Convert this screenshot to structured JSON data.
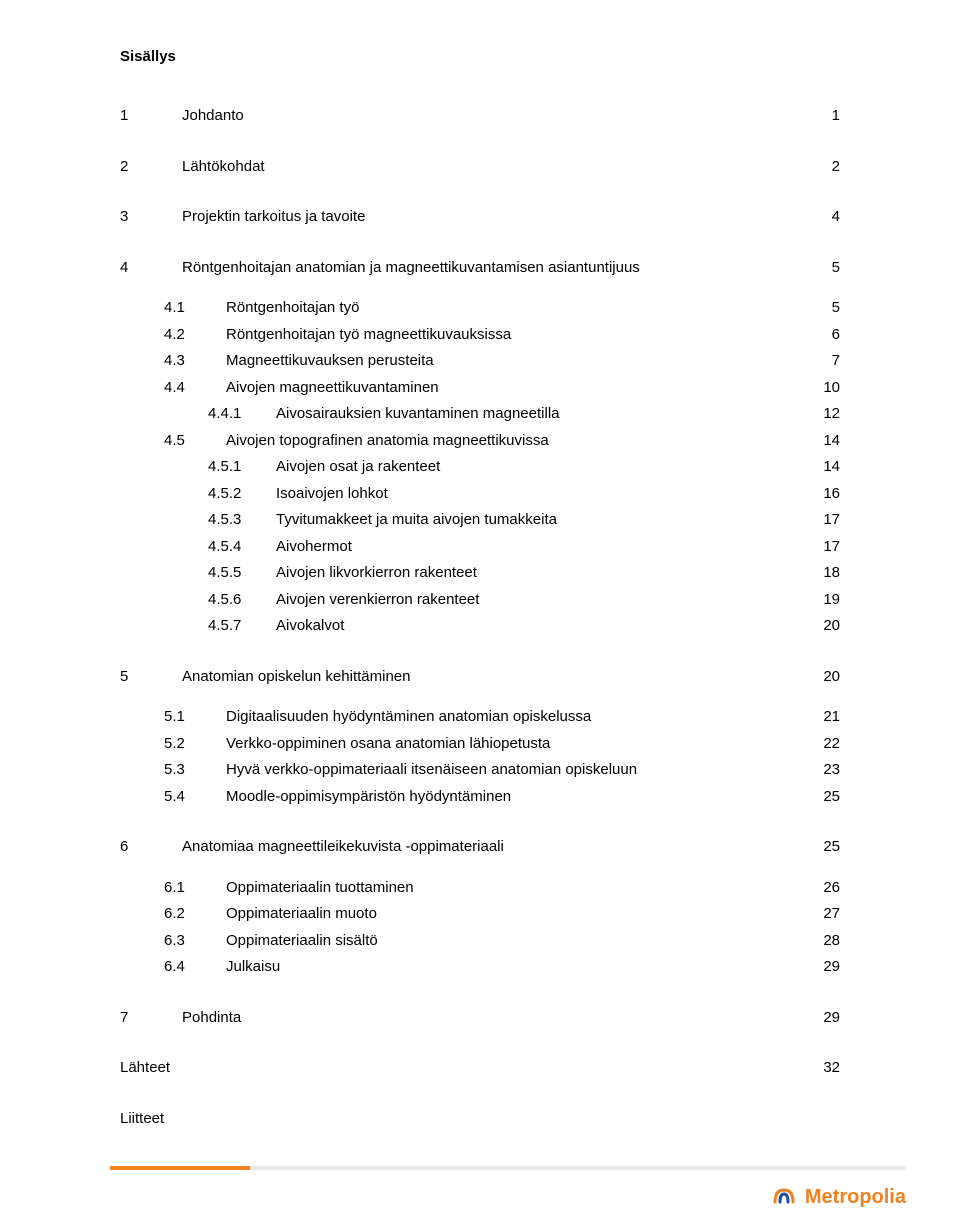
{
  "title": "Sisällys",
  "colors": {
    "text": "#000000",
    "background": "#ffffff",
    "accent": "#f58020",
    "footer_bar": "#e8e8e8",
    "logo_blue": "#1f4ea1"
  },
  "font": {
    "family": "Arial",
    "size_body": 15,
    "title_weight": "bold"
  },
  "logo_text": "Metropolia",
  "toc": [
    {
      "lvl": 0,
      "num": "1",
      "label": "Johdanto",
      "page": "1",
      "gap": "lg"
    },
    {
      "lvl": 0,
      "num": "2",
      "label": "Lähtökohdat",
      "page": "2",
      "gap": "lg"
    },
    {
      "lvl": 0,
      "num": "3",
      "label": "Projektin tarkoitus ja tavoite",
      "page": "4",
      "gap": "lg"
    },
    {
      "lvl": 0,
      "num": "4",
      "label": "Röntgenhoitajan anatomian ja magneettikuvantamisen asiantuntijuus",
      "page": "5",
      "gap": "lg"
    },
    {
      "lvl": 1,
      "num": "4.1",
      "label": "Röntgenhoitajan työ",
      "page": "5",
      "gap": "md"
    },
    {
      "lvl": 1,
      "num": "4.2",
      "label": "Röntgenhoitajan työ magneettikuvauksissa",
      "page": "6",
      "gap": "sm"
    },
    {
      "lvl": 1,
      "num": "4.3",
      "label": "Magneettikuvauksen perusteita",
      "page": "7",
      "gap": "sm"
    },
    {
      "lvl": 1,
      "num": "4.4",
      "label": "Aivojen magneettikuvantaminen",
      "page": "10",
      "gap": "sm"
    },
    {
      "lvl": 2,
      "num": "4.4.1",
      "label": "Aivosairauksien kuvantaminen magneetilla",
      "page": "12",
      "gap": "sm"
    },
    {
      "lvl": 1,
      "num": "4.5",
      "label": "Aivojen topografinen anatomia magneettikuvissa",
      "page": "14",
      "gap": "sm"
    },
    {
      "lvl": 2,
      "num": "4.5.1",
      "label": "Aivojen osat ja rakenteet",
      "page": "14",
      "gap": "sm"
    },
    {
      "lvl": 2,
      "num": "4.5.2",
      "label": "Isoaivojen lohkot",
      "page": "16",
      "gap": "sm"
    },
    {
      "lvl": 2,
      "num": "4.5.3",
      "label": "Tyvitumakkeet ja muita aivojen tumakkeita",
      "page": "17",
      "gap": "sm"
    },
    {
      "lvl": 2,
      "num": "4.5.4",
      "label": "Aivohermot",
      "page": "17",
      "gap": "sm"
    },
    {
      "lvl": 2,
      "num": "4.5.5",
      "label": "Aivojen likvorkierron rakenteet",
      "page": "18",
      "gap": "sm"
    },
    {
      "lvl": 2,
      "num": "4.5.6",
      "label": "Aivojen verenkierron rakenteet",
      "page": "19",
      "gap": "sm"
    },
    {
      "lvl": 2,
      "num": "4.5.7",
      "label": "Aivokalvot",
      "page": "20",
      "gap": "sm"
    },
    {
      "lvl": 0,
      "num": "5",
      "label": "Anatomian opiskelun kehittäminen",
      "page": "20",
      "gap": "lg"
    },
    {
      "lvl": 1,
      "num": "5.1",
      "label": "Digitaalisuuden hyödyntäminen anatomian opiskelussa",
      "page": "21",
      "gap": "md"
    },
    {
      "lvl": 1,
      "num": "5.2",
      "label": "Verkko-oppiminen osana anatomian lähiopetusta",
      "page": "22",
      "gap": "sm"
    },
    {
      "lvl": 1,
      "num": "5.3",
      "label": "Hyvä verkko-oppimateriaali itsenäiseen anatomian opiskeluun",
      "page": "23",
      "gap": "sm"
    },
    {
      "lvl": 1,
      "num": "5.4",
      "label": "Moodle-oppimisympäristön hyödyntäminen",
      "page": "25",
      "gap": "sm"
    },
    {
      "lvl": 0,
      "num": "6",
      "label": "Anatomiaa magneettileikekuvista -oppimateriaali",
      "page": "25",
      "gap": "lg"
    },
    {
      "lvl": 1,
      "num": "6.1",
      "label": "Oppimateriaalin tuottaminen",
      "page": "26",
      "gap": "md"
    },
    {
      "lvl": 1,
      "num": "6.2",
      "label": "Oppimateriaalin muoto",
      "page": "27",
      "gap": "sm"
    },
    {
      "lvl": 1,
      "num": "6.3",
      "label": "Oppimateriaalin sisältö",
      "page": "28",
      "gap": "sm"
    },
    {
      "lvl": 1,
      "num": "6.4",
      "label": "Julkaisu",
      "page": "29",
      "gap": "sm"
    },
    {
      "lvl": 0,
      "num": "7",
      "label": "Pohdinta",
      "page": "29",
      "gap": "lg"
    },
    {
      "lvl": 0,
      "num": "",
      "label": "Lähteet",
      "page": "32",
      "gap": "lg"
    },
    {
      "lvl": 0,
      "num": "",
      "label": "Liitteet",
      "page": "",
      "gap": "lg"
    }
  ]
}
